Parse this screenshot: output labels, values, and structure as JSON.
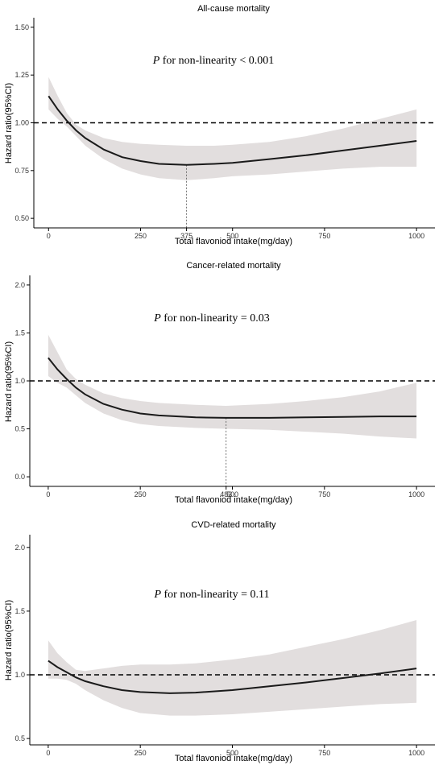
{
  "chart_data": [
    {
      "type": "line",
      "title": "All-cause mortality",
      "xlabel": "Total flavoniod intake(mg/day)",
      "ylabel": "Hazard ratio(95%CI)",
      "p_prefix": "P",
      "p_text": " for non-linearity < 0.001",
      "xlim": [
        -40,
        1050
      ],
      "ylim": [
        0.45,
        1.55
      ],
      "x_ticks": [
        0,
        250,
        375,
        500,
        750,
        1000
      ],
      "x_tick_labels": [
        "0",
        "250",
        "375",
        "500",
        "750",
        "1000"
      ],
      "y_ticks": [
        0.5,
        0.75,
        1.0,
        1.25,
        1.5
      ],
      "y_tick_labels": [
        "0.50",
        "0.75",
        "1.00",
        "1.25",
        "1.50"
      ],
      "reference_line": 1.0,
      "marker_x": 375,
      "grid": false,
      "series": [
        {
          "x": [
            0,
            25,
            50,
            75,
            100,
            150,
            200,
            250,
            300,
            375,
            450,
            500,
            600,
            700,
            800,
            900,
            1000
          ],
          "y": [
            1.14,
            1.07,
            1.01,
            0.96,
            0.92,
            0.86,
            0.82,
            0.8,
            0.785,
            0.78,
            0.785,
            0.79,
            0.81,
            0.83,
            0.855,
            0.88,
            0.905
          ],
          "lower": [
            1.07,
            1.02,
            0.98,
            0.93,
            0.88,
            0.81,
            0.76,
            0.73,
            0.71,
            0.7,
            0.71,
            0.72,
            0.73,
            0.745,
            0.76,
            0.77,
            0.77
          ],
          "upper": [
            1.24,
            1.14,
            1.05,
            0.99,
            0.96,
            0.92,
            0.9,
            0.89,
            0.885,
            0.88,
            0.88,
            0.885,
            0.9,
            0.93,
            0.97,
            1.02,
            1.07
          ]
        }
      ]
    },
    {
      "type": "line",
      "title": "Cancer-related mortality",
      "xlabel": "Total flavoniod intake(mg/day)",
      "ylabel": "Hazard ratio(95%CI)",
      "p_prefix": "P",
      "p_text": " for non-linearity = 0.03",
      "xlim": [
        -50,
        1050
      ],
      "ylim": [
        -0.1,
        2.1
      ],
      "x_ticks": [
        0,
        250,
        483,
        500,
        750,
        1000
      ],
      "x_tick_labels": [
        "0",
        "250",
        "483",
        "500",
        "750",
        "1000"
      ],
      "y_ticks": [
        0.0,
        0.5,
        1.0,
        1.5,
        2.0
      ],
      "y_tick_labels": [
        "0.0",
        "0.5",
        "1.0",
        "1.5",
        "2.0"
      ],
      "reference_line": 1.0,
      "marker_x": 483,
      "grid": false,
      "series": [
        {
          "x": [
            0,
            25,
            50,
            75,
            100,
            150,
            200,
            250,
            300,
            400,
            483,
            600,
            700,
            800,
            900,
            1000
          ],
          "y": [
            1.24,
            1.12,
            1.02,
            0.93,
            0.86,
            0.76,
            0.7,
            0.66,
            0.64,
            0.62,
            0.615,
            0.615,
            0.62,
            0.625,
            0.63,
            0.63
          ],
          "lower": [
            1.05,
            0.98,
            0.93,
            0.85,
            0.77,
            0.66,
            0.59,
            0.55,
            0.53,
            0.51,
            0.5,
            0.49,
            0.47,
            0.45,
            0.42,
            0.4
          ],
          "upper": [
            1.48,
            1.3,
            1.12,
            1.02,
            0.96,
            0.87,
            0.82,
            0.79,
            0.77,
            0.75,
            0.74,
            0.76,
            0.79,
            0.83,
            0.89,
            0.98
          ]
        }
      ]
    },
    {
      "type": "line",
      "title": "CVD-related mortality",
      "xlabel": "Total flavoniod intake(mg/day)",
      "ylabel": "Hazard ratio(95%CI)",
      "p_prefix": "P",
      "p_text": " for non-linearity = 0.11",
      "xlim": [
        -50,
        1050
      ],
      "ylim": [
        0.45,
        2.1
      ],
      "x_ticks": [
        0,
        250,
        500,
        750,
        1000
      ],
      "x_tick_labels": [
        "0",
        "250",
        "500",
        "750",
        "1000"
      ],
      "y_ticks": [
        0.5,
        1.0,
        1.5,
        2.0
      ],
      "y_tick_labels": [
        "0.5",
        "1.0",
        "1.5",
        "2.0"
      ],
      "reference_line": 1.0,
      "grid": false,
      "series": [
        {
          "x": [
            0,
            25,
            50,
            75,
            100,
            150,
            200,
            250,
            330,
            400,
            500,
            600,
            700,
            800,
            900,
            1000
          ],
          "y": [
            1.11,
            1.06,
            1.02,
            0.98,
            0.95,
            0.91,
            0.88,
            0.865,
            0.855,
            0.86,
            0.88,
            0.91,
            0.94,
            0.975,
            1.01,
            1.05
          ],
          "lower": [
            0.97,
            0.97,
            0.96,
            0.93,
            0.88,
            0.8,
            0.74,
            0.7,
            0.68,
            0.68,
            0.69,
            0.71,
            0.73,
            0.75,
            0.77,
            0.78
          ],
          "upper": [
            1.27,
            1.17,
            1.1,
            1.04,
            1.03,
            1.05,
            1.07,
            1.08,
            1.08,
            1.09,
            1.12,
            1.16,
            1.22,
            1.28,
            1.35,
            1.43
          ]
        }
      ]
    }
  ]
}
